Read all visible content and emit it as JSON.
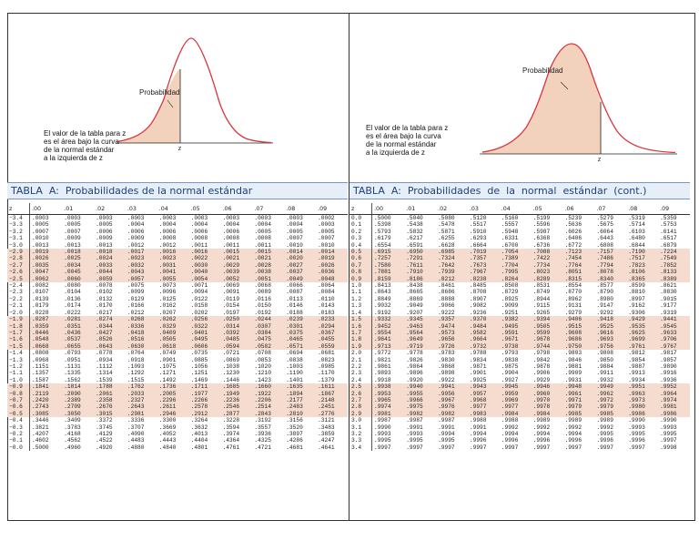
{
  "colors": {
    "curve": "#d9363e",
    "shade": "#f3d2bd",
    "title_bg": "#e6eef7",
    "title_text": "#1d3f7f",
    "row_shade": "#f6dccf"
  },
  "left": {
    "prob_label": "Probabilidad",
    "z_label": "z",
    "explain": "El valor de la tabla para z\nes el área bajo la curva\nde la normal estándar\na la izquierda de z",
    "title": "TABLA  A:  Probabilidades de la normal estándar",
    "headers": [
      "z",
      ".00",
      ".01",
      ".02",
      ".03",
      ".04",
      ".05",
      ".06",
      ".07",
      ".08",
      ".09"
    ],
    "rows": [
      [
        "−3.4",
        ".0003",
        ".0003",
        ".0003",
        ".0003",
        ".0003",
        ".0003",
        ".0003",
        ".0003",
        ".0003",
        ".0002"
      ],
      [
        "−3.3",
        ".0005",
        ".0005",
        ".0005",
        ".0004",
        ".0004",
        ".0004",
        ".0004",
        ".0004",
        ".0004",
        ".0003"
      ],
      [
        "−3.2",
        ".0007",
        ".0007",
        ".0006",
        ".0006",
        ".0006",
        ".0006",
        ".0006",
        ".0005",
        ".0005",
        ".0005"
      ],
      [
        "−3.1",
        ".0010",
        ".0009",
        ".0009",
        ".0009",
        ".0008",
        ".0008",
        ".0008",
        ".0008",
        ".0007",
        ".0007"
      ],
      [
        "−3.0",
        ".0013",
        ".0013",
        ".0013",
        ".0012",
        ".0012",
        ".0011",
        ".0011",
        ".0011",
        ".0010",
        ".0010"
      ],
      [
        "−2.9",
        ".0019",
        ".0018",
        ".0018",
        ".0017",
        ".0016",
        ".0016",
        ".0015",
        ".0015",
        ".0014",
        ".0014"
      ],
      [
        "−2.8",
        ".0026",
        ".0025",
        ".0024",
        ".0023",
        ".0023",
        ".0022",
        ".0021",
        ".0021",
        ".0020",
        ".0019"
      ],
      [
        "−2.7",
        ".0035",
        ".0034",
        ".0033",
        ".0032",
        ".0031",
        ".0030",
        ".0029",
        ".0028",
        ".0027",
        ".0026"
      ],
      [
        "−2.6",
        ".0047",
        ".0045",
        ".0044",
        ".0043",
        ".0041",
        ".0040",
        ".0039",
        ".0038",
        ".0037",
        ".0036"
      ],
      [
        "−2.5",
        ".0062",
        ".0060",
        ".0059",
        ".0057",
        ".0055",
        ".0054",
        ".0052",
        ".0051",
        ".0049",
        ".0048"
      ],
      [
        "−2.4",
        ".0082",
        ".0080",
        ".0078",
        ".0075",
        ".0073",
        ".0071",
        ".0069",
        ".0068",
        ".0066",
        ".0064"
      ],
      [
        "−2.3",
        ".0107",
        ".0104",
        ".0102",
        ".0099",
        ".0096",
        ".0094",
        ".0091",
        ".0089",
        ".0087",
        ".0084"
      ],
      [
        "−2.2",
        ".0139",
        ".0136",
        ".0132",
        ".0129",
        ".0125",
        ".0122",
        ".0119",
        ".0116",
        ".0113",
        ".0110"
      ],
      [
        "−2.1",
        ".0179",
        ".0174",
        ".0170",
        ".0166",
        ".0162",
        ".0158",
        ".0154",
        ".0150",
        ".0146",
        ".0143"
      ],
      [
        "−2.0",
        ".0228",
        ".0222",
        ".0217",
        ".0212",
        ".0207",
        ".0202",
        ".0197",
        ".0192",
        ".0188",
        ".0183"
      ],
      [
        "−1.9",
        ".0287",
        ".0281",
        ".0274",
        ".0268",
        ".0262",
        ".0256",
        ".0250",
        ".0244",
        ".0239",
        ".0233"
      ],
      [
        "−1.8",
        ".0359",
        ".0351",
        ".0344",
        ".0336",
        ".0329",
        ".0322",
        ".0314",
        ".0307",
        ".0301",
        ".0294"
      ],
      [
        "−1.7",
        ".0446",
        ".0436",
        ".0427",
        ".0418",
        ".0409",
        ".0401",
        ".0392",
        ".0384",
        ".0375",
        ".0367"
      ],
      [
        "−1.6",
        ".0548",
        ".0537",
        ".0526",
        ".0516",
        ".0505",
        ".0495",
        ".0485",
        ".0475",
        ".0465",
        ".0455"
      ],
      [
        "−1.5",
        ".0668",
        ".0655",
        ".0643",
        ".0630",
        ".0618",
        ".0606",
        ".0594",
        ".0582",
        ".0571",
        ".0559"
      ],
      [
        "−1.4",
        ".0808",
        ".0793",
        ".0778",
        ".0764",
        ".0749",
        ".0735",
        ".0721",
        ".0708",
        ".0694",
        ".0681"
      ],
      [
        "−1.3",
        ".0968",
        ".0951",
        ".0934",
        ".0918",
        ".0901",
        ".0885",
        ".0869",
        ".0853",
        ".0838",
        ".0823"
      ],
      [
        "−1.2",
        ".1151",
        ".1131",
        ".1112",
        ".1093",
        ".1075",
        ".1056",
        ".1038",
        ".1020",
        ".1003",
        ".0985"
      ],
      [
        "−1.1",
        ".1357",
        ".1335",
        ".1314",
        ".1292",
        ".1271",
        ".1251",
        ".1230",
        ".1210",
        ".1190",
        ".1170"
      ],
      [
        "−1.0",
        ".1587",
        ".1562",
        ".1539",
        ".1515",
        ".1492",
        ".1469",
        ".1446",
        ".1423",
        ".1401",
        ".1379"
      ],
      [
        "−0.9",
        ".1841",
        ".1814",
        ".1788",
        ".1762",
        ".1736",
        ".1711",
        ".1685",
        ".1660",
        ".1635",
        ".1611"
      ],
      [
        "−0.8",
        ".2119",
        ".2090",
        ".2061",
        ".2033",
        ".2005",
        ".1977",
        ".1949",
        ".1922",
        ".1894",
        ".1867"
      ],
      [
        "−0.7",
        ".2420",
        ".2389",
        ".2358",
        ".2327",
        ".2296",
        ".2266",
        ".2236",
        ".2206",
        ".2177",
        ".2148"
      ],
      [
        "−0.6",
        ".2743",
        ".2709",
        ".2676",
        ".2643",
        ".2611",
        ".2578",
        ".2546",
        ".2514",
        ".2483",
        ".2451"
      ],
      [
        "−0.5",
        ".3085",
        ".3050",
        ".3015",
        ".2981",
        ".2946",
        ".2912",
        ".2877",
        ".2843",
        ".2810",
        ".2776"
      ],
      [
        "−0.4",
        ".3446",
        ".3409",
        ".3372",
        ".3336",
        ".3300",
        ".3264",
        ".3228",
        ".3192",
        ".3156",
        ".3121"
      ],
      [
        "−0.3",
        ".3821",
        ".3783",
        ".3745",
        ".3707",
        ".3669",
        ".3632",
        ".3594",
        ".3557",
        ".3520",
        ".3483"
      ],
      [
        "−0.2",
        ".4207",
        ".4168",
        ".4129",
        ".4090",
        ".4052",
        ".4013",
        ".3974",
        ".3936",
        ".3897",
        ".3859"
      ],
      [
        "−0.1",
        ".4602",
        ".4562",
        ".4522",
        ".4483",
        ".4443",
        ".4404",
        ".4364",
        ".4325",
        ".4286",
        ".4247"
      ],
      [
        "−0.0",
        ".5000",
        ".4960",
        ".4920",
        ".4880",
        ".4840",
        ".4801",
        ".4761",
        ".4721",
        ".4681",
        ".4641"
      ]
    ]
  },
  "right": {
    "prob_label": "Probabilidad",
    "z_label": "z",
    "explain": "El valor de la tabla para z\nes el área bajo la curva\nde la normal estándar\na  la  izquierda  de  z",
    "title": "TABLA  A:  Probabilidades  de  la  normal  estándar  (cont.)",
    "headers": [
      "z",
      ".00",
      ".01",
      ".02",
      ".03",
      ".04",
      ".05",
      ".06",
      ".07",
      ".08",
      ".09"
    ],
    "rows": [
      [
        "0.0",
        ".5000",
        ".5040",
        ".5080",
        ".5120",
        ".5160",
        ".5199",
        ".5239",
        ".5279",
        ".5319",
        ".5359"
      ],
      [
        "0.1",
        ".5398",
        ".5438",
        ".5478",
        ".5517",
        ".5557",
        ".5596",
        ".5636",
        ".5675",
        ".5714",
        ".5753"
      ],
      [
        "0.2",
        ".5793",
        ".5832",
        ".5871",
        ".5910",
        ".5948",
        ".5987",
        ".6026",
        ".6064",
        ".6103",
        ".6141"
      ],
      [
        "0.3",
        ".6179",
        ".6217",
        ".6255",
        ".6293",
        ".6331",
        ".6368",
        ".6406",
        ".6443",
        ".6480",
        ".6517"
      ],
      [
        "0.4",
        ".6554",
        ".6591",
        ".6628",
        ".6664",
        ".6700",
        ".6736",
        ".6772",
        ".6808",
        ".6844",
        ".6879"
      ],
      [
        "0.5",
        ".6915",
        ".6950",
        ".6985",
        ".7019",
        ".7054",
        ".7088",
        ".7123",
        ".7157",
        ".7190",
        ".7224"
      ],
      [
        "0.6",
        ".7257",
        ".7291",
        ".7324",
        ".7357",
        ".7389",
        ".7422",
        ".7454",
        ".7486",
        ".7517",
        ".7549"
      ],
      [
        "0.7",
        ".7580",
        ".7611",
        ".7642",
        ".7673",
        ".7704",
        ".7734",
        ".7764",
        ".7794",
        ".7823",
        ".7852"
      ],
      [
        "0.8",
        ".7881",
        ".7910",
        ".7939",
        ".7967",
        ".7995",
        ".8023",
        ".8051",
        ".8078",
        ".8106",
        ".8133"
      ],
      [
        "0.9",
        ".8159",
        ".8186",
        ".8212",
        ".8238",
        ".8264",
        ".8289",
        ".8315",
        ".8340",
        ".8365",
        ".8389"
      ],
      [
        "1.0",
        ".8413",
        ".8438",
        ".8461",
        ".8485",
        ".8508",
        ".8531",
        ".8554",
        ".8577",
        ".8599",
        ".8621"
      ],
      [
        "1.1",
        ".8643",
        ".8665",
        ".8686",
        ".8708",
        ".8729",
        ".8749",
        ".8770",
        ".8790",
        ".8810",
        ".8830"
      ],
      [
        "1.2",
        ".8849",
        ".8869",
        ".8888",
        ".8907",
        ".8925",
        ".8944",
        ".8962",
        ".8980",
        ".8997",
        ".9015"
      ],
      [
        "1.3",
        ".9032",
        ".9049",
        ".9066",
        ".9082",
        ".9099",
        ".9115",
        ".9131",
        ".9147",
        ".9162",
        ".9177"
      ],
      [
        "1.4",
        ".9192",
        ".9207",
        ".9222",
        ".9236",
        ".9251",
        ".9265",
        ".9279",
        ".9292",
        ".9306",
        ".9319"
      ],
      [
        "1.5",
        ".9332",
        ".9345",
        ".9357",
        ".9370",
        ".9382",
        ".9394",
        ".9406",
        ".9418",
        ".9429",
        ".9441"
      ],
      [
        "1.6",
        ".9452",
        ".9463",
        ".9474",
        ".9484",
        ".9495",
        ".9505",
        ".9515",
        ".9525",
        ".9535",
        ".9545"
      ],
      [
        "1.7",
        ".9554",
        ".9564",
        ".9573",
        ".9582",
        ".9591",
        ".9599",
        ".9608",
        ".9616",
        ".9625",
        ".9633"
      ],
      [
        "1.8",
        ".9641",
        ".9649",
        ".9656",
        ".9664",
        ".9671",
        ".9678",
        ".9686",
        ".9693",
        ".9699",
        ".9706"
      ],
      [
        "1.9",
        ".9713",
        ".9719",
        ".9726",
        ".9732",
        ".9738",
        ".9744",
        ".9750",
        ".9756",
        ".9761",
        ".9767"
      ],
      [
        "2.0",
        ".9772",
        ".9778",
        ".9783",
        ".9788",
        ".9793",
        ".9798",
        ".9803",
        ".9808",
        ".9812",
        ".9817"
      ],
      [
        "2.1",
        ".9821",
        ".9826",
        ".9830",
        ".9834",
        ".9838",
        ".9842",
        ".9846",
        ".9850",
        ".9854",
        ".9857"
      ],
      [
        "2.2",
        ".9861",
        ".9864",
        ".9868",
        ".9871",
        ".9875",
        ".9878",
        ".9881",
        ".9884",
        ".9887",
        ".9890"
      ],
      [
        "2.3",
        ".9893",
        ".9896",
        ".9898",
        ".9901",
        ".9904",
        ".9906",
        ".9909",
        ".9911",
        ".9913",
        ".9916"
      ],
      [
        "2.4",
        ".9918",
        ".9920",
        ".9922",
        ".9925",
        ".9927",
        ".9929",
        ".9931",
        ".9932",
        ".9934",
        ".9936"
      ],
      [
        "2.5",
        ".9938",
        ".9940",
        ".9941",
        ".9943",
        ".9945",
        ".9946",
        ".9948",
        ".9949",
        ".9951",
        ".9952"
      ],
      [
        "2.6",
        ".9953",
        ".9955",
        ".9956",
        ".9957",
        ".9959",
        ".9960",
        ".9961",
        ".9962",
        ".9963",
        ".9964"
      ],
      [
        "2.7",
        ".9965",
        ".9966",
        ".9967",
        ".9968",
        ".9969",
        ".9970",
        ".9971",
        ".9972",
        ".9973",
        ".9974"
      ],
      [
        "2.8",
        ".9974",
        ".9975",
        ".9976",
        ".9977",
        ".9977",
        ".9978",
        ".9979",
        ".9979",
        ".9980",
        ".9981"
      ],
      [
        "2.9",
        ".9981",
        ".9982",
        ".9982",
        ".9983",
        ".9984",
        ".9984",
        ".9985",
        ".9985",
        ".9986",
        ".9986"
      ],
      [
        "3.0",
        ".9987",
        ".9987",
        ".9987",
        ".9988",
        ".9988",
        ".9989",
        ".9989",
        ".9989",
        ".9990",
        ".9990"
      ],
      [
        "3.1",
        ".9990",
        ".9991",
        ".9991",
        ".9991",
        ".9992",
        ".9992",
        ".9992",
        ".9992",
        ".9993",
        ".9993"
      ],
      [
        "3.2",
        ".9993",
        ".9993",
        ".9994",
        ".9994",
        ".9994",
        ".9994",
        ".9994",
        ".9995",
        ".9995",
        ".9995"
      ],
      [
        "3.3",
        ".9995",
        ".9995",
        ".9995",
        ".9996",
        ".9996",
        ".9996",
        ".9996",
        ".9996",
        ".9996",
        ".9997"
      ],
      [
        "3.4",
        ".9997",
        ".9997",
        ".9997",
        ".9997",
        ".9997",
        ".9997",
        ".9997",
        ".9997",
        ".9997",
        ".9998"
      ]
    ]
  }
}
